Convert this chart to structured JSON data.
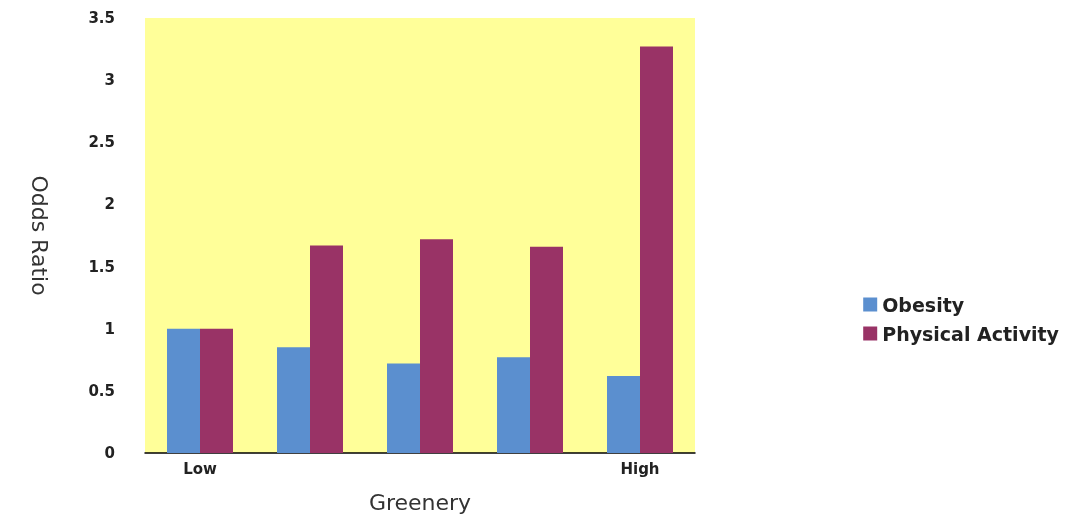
{
  "chart_data": {
    "type": "bar",
    "xlabel": "Greenery",
    "ylabel": "Odds Ratio",
    "categories": [
      "Low",
      null,
      null,
      null,
      "High"
    ],
    "series": [
      {
        "name": "Obesity",
        "color": "#5b8fcf",
        "values": [
          1.0,
          0.85,
          0.72,
          0.77,
          0.62
        ]
      },
      {
        "name": "Physical Activity",
        "color": "#993366",
        "values": [
          1.0,
          1.67,
          1.72,
          1.66,
          3.27
        ]
      }
    ],
    "ylim": [
      0,
      3.5
    ],
    "yticks": [
      0,
      0.5,
      1,
      1.5,
      2,
      2.5,
      3,
      3.5
    ],
    "grid": false,
    "legend": "right"
  }
}
